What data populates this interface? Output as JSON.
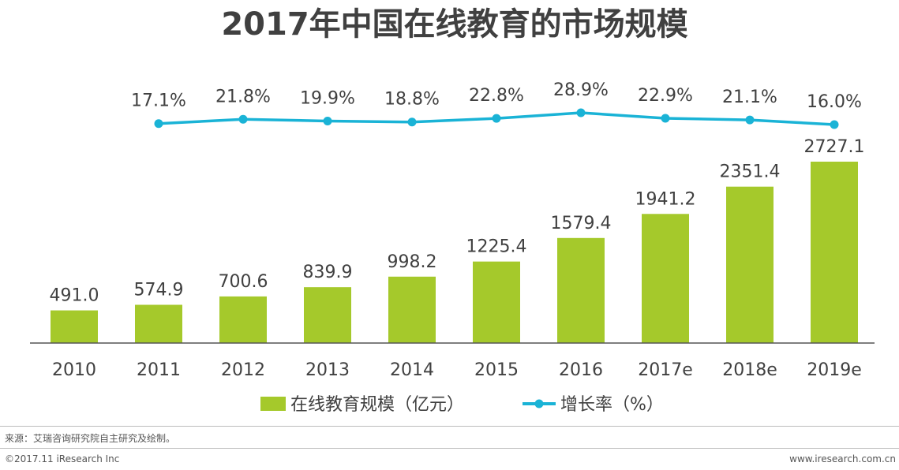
{
  "chart_data": {
    "type": "bar",
    "title": "2017年中国在线教育的市场规模",
    "categories": [
      "2010",
      "2011",
      "2012",
      "2013",
      "2014",
      "2015",
      "2016",
      "2017e",
      "2018e",
      "2019e"
    ],
    "series": [
      {
        "name": "在线教育规模（亿元）",
        "type": "bar",
        "values": [
          491.0,
          574.9,
          700.6,
          839.9,
          998.2,
          1225.4,
          1579.4,
          1941.2,
          2351.4,
          2727.1
        ],
        "labels": [
          "491.0",
          "574.9",
          "700.6",
          "839.9",
          "998.2",
          "1225.4",
          "1579.4",
          "1941.2",
          "2351.4",
          "2727.1"
        ],
        "color": "#a5c92b"
      },
      {
        "name": "增长率（%）",
        "type": "line",
        "values": [
          null,
          17.1,
          21.8,
          19.9,
          18.8,
          22.8,
          28.9,
          22.9,
          21.1,
          16.0
        ],
        "labels": [
          "",
          "17.1%",
          "21.8%",
          "19.9%",
          "18.8%",
          "22.8%",
          "28.9%",
          "22.9%",
          "21.1%",
          "16.0%"
        ],
        "color": "#1ab3d6"
      }
    ],
    "ylim_bar": [
      0,
      2900
    ],
    "ylim_line": [
      16.0,
      28.9
    ],
    "grid": false,
    "legend": "bottom-center"
  },
  "footer": {
    "source": "来源：艾瑞咨询研究院自主研究及绘制。",
    "copyright": "©2017.11 iResearch Inc",
    "website": "www.iresearch.com.cn"
  },
  "colors": {
    "text": "#404040",
    "axis": "#555555"
  }
}
